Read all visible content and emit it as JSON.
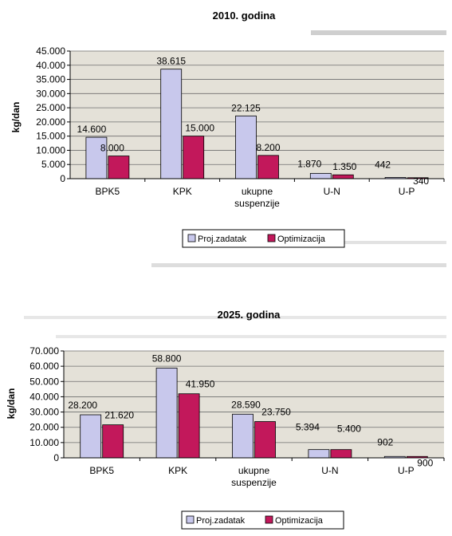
{
  "colors": {
    "proj_fill": "#c8c8ec",
    "opt_fill": "#c2185b",
    "plot_bg": "#e4e1d8",
    "grid": "#6e6e6e",
    "scan_text": "#c9c9c9"
  },
  "chart_data": [
    {
      "type": "bar",
      "title": "2010. godina",
      "ylabel": "kg/dan",
      "categories": [
        [
          "BPK5"
        ],
        [
          "KPK"
        ],
        [
          "ukupne",
          "suspenzije"
        ],
        [
          "U-N"
        ],
        [
          "U-P"
        ]
      ],
      "ylim": [
        0,
        45000
      ],
      "yticks": [
        0,
        5000,
        10000,
        15000,
        20000,
        25000,
        30000,
        35000,
        40000,
        45000
      ],
      "ytick_labels": [
        "0",
        "5.000",
        "10.000",
        "15.000",
        "20.000",
        "25.000",
        "30.000",
        "35.000",
        "40.000",
        "45.000"
      ],
      "series": [
        {
          "name": "Proj.zadatak",
          "values": [
            14600,
            38615,
            22125,
            1870,
            442
          ],
          "labels": [
            "14.600",
            "38.615",
            "22.125",
            "1.870",
            "442"
          ]
        },
        {
          "name": "Optimizacija",
          "values": [
            8000,
            15000,
            8200,
            1350,
            340
          ],
          "labels": [
            "8.000",
            "15.000",
            "8.200",
            "1.350",
            "340"
          ]
        }
      ],
      "grid": true,
      "legend": "bottom"
    },
    {
      "type": "bar",
      "title": "2025. godina",
      "ylabel": "kg/dan",
      "categories": [
        [
          "BPK5"
        ],
        [
          "KPK"
        ],
        [
          "ukupne",
          "suspenzije"
        ],
        [
          "U-N"
        ],
        [
          "U-P"
        ]
      ],
      "ylim": [
        0,
        70000
      ],
      "yticks": [
        0,
        10000,
        20000,
        30000,
        40000,
        50000,
        60000,
        70000
      ],
      "ytick_labels": [
        "0",
        "10.000",
        "20.000",
        "30.000",
        "40.000",
        "50.000",
        "60.000",
        "70.000"
      ],
      "series": [
        {
          "name": "Proj.zadatak",
          "values": [
            28200,
            58800,
            28590,
            5394,
            902
          ],
          "labels": [
            "28.200",
            "58.800",
            "28.590",
            "5.394",
            "902"
          ]
        },
        {
          "name": "Optimizacija",
          "values": [
            21620,
            41950,
            23750,
            5400,
            900
          ],
          "labels": [
            "21.620",
            "41.950",
            "23.750",
            "5.400",
            "900"
          ]
        }
      ],
      "grid": true,
      "legend": "bottom"
    }
  ]
}
